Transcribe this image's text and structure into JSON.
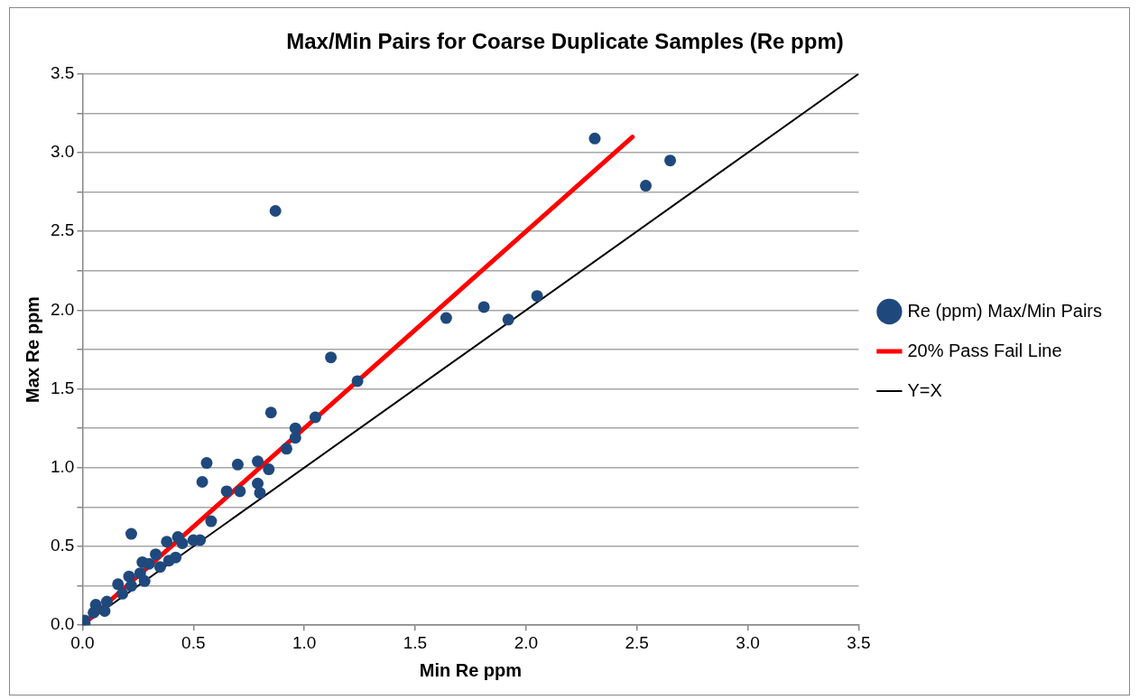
{
  "chart_data": {
    "type": "scatter",
    "title": "Max/Min Pairs for Coarse Duplicate Samples (Re ppm)",
    "xlabel": "Min Re ppm",
    "ylabel": "Max Re ppm",
    "xlim": [
      0,
      3.5
    ],
    "ylim": [
      0,
      3.5
    ],
    "xticks": [
      {
        "value": 0,
        "label": "0.0"
      },
      0.5,
      {
        "value": 1,
        "label": "1.0"
      },
      1.5,
      {
        "value": 2,
        "label": "2.0"
      },
      2.5,
      {
        "value": 3,
        "label": "3.0"
      },
      3.5
    ],
    "yticks": [
      {
        "value": 0,
        "label": "0.0"
      },
      {
        "value": 0.25,
        "label": null
      },
      0.5,
      {
        "value": 0.75,
        "label": null
      },
      {
        "value": 1,
        "label": "1.0"
      },
      {
        "value": 1.25,
        "label": null
      },
      1.5,
      {
        "value": 1.75,
        "label": null
      },
      {
        "value": 2,
        "label": "2.0"
      },
      {
        "value": 2.25,
        "label": null
      },
      2.5,
      {
        "value": 2.75,
        "label": null
      },
      {
        "value": 3,
        "label": "3.0"
      },
      {
        "value": 3.25,
        "label": null
      },
      3.5
    ],
    "grid": "y",
    "legend": "right",
    "series": [
      {
        "name": "Re (ppm) Max/Min Pairs",
        "type": "scatter",
        "marker": "circle",
        "color": "#1f497d",
        "x": [
          2.31,
          2.65,
          2.54,
          0.87,
          2.05,
          1.64,
          1.81,
          1.92,
          1.12,
          1.24,
          0.85,
          1.05,
          0.96,
          0.96,
          0.92,
          0.56,
          0.7,
          0.79,
          0.84,
          0.54,
          0.79,
          0.65,
          0.71,
          0.8,
          0.58,
          0.22,
          0.38,
          0.43,
          0.45,
          0.5,
          0.53,
          0.33,
          0.27,
          0.3,
          0.35,
          0.39,
          0.42,
          0.21,
          0.16,
          0.18,
          0.22,
          0.28,
          0.26,
          0.11,
          0.06,
          0.1,
          0.05,
          0.01,
          0.01
        ],
        "values": [
          3.09,
          2.95,
          2.79,
          2.63,
          2.09,
          1.95,
          2.02,
          1.94,
          1.7,
          1.55,
          1.35,
          1.32,
          1.25,
          1.19,
          1.12,
          1.03,
          1.02,
          1.04,
          0.99,
          0.91,
          0.9,
          0.85,
          0.85,
          0.84,
          0.66,
          0.58,
          0.53,
          0.56,
          0.52,
          0.54,
          0.54,
          0.45,
          0.4,
          0.39,
          0.37,
          0.41,
          0.43,
          0.31,
          0.26,
          0.2,
          0.25,
          0.28,
          0.33,
          0.15,
          0.13,
          0.09,
          0.08,
          0.03,
          0.01
        ]
      },
      {
        "name": "20% Pass Fail Line",
        "type": "line",
        "marker": "none",
        "line_style": "solid",
        "color": "#ff0000",
        "x": [
          0,
          2.48
        ],
        "values": [
          0,
          3.1
        ]
      },
      {
        "name": "Y=X",
        "type": "line",
        "marker": "none",
        "line_style": "solid",
        "color": "#000000",
        "x": [
          0,
          3.5
        ],
        "values": [
          0,
          3.5
        ]
      }
    ]
  }
}
